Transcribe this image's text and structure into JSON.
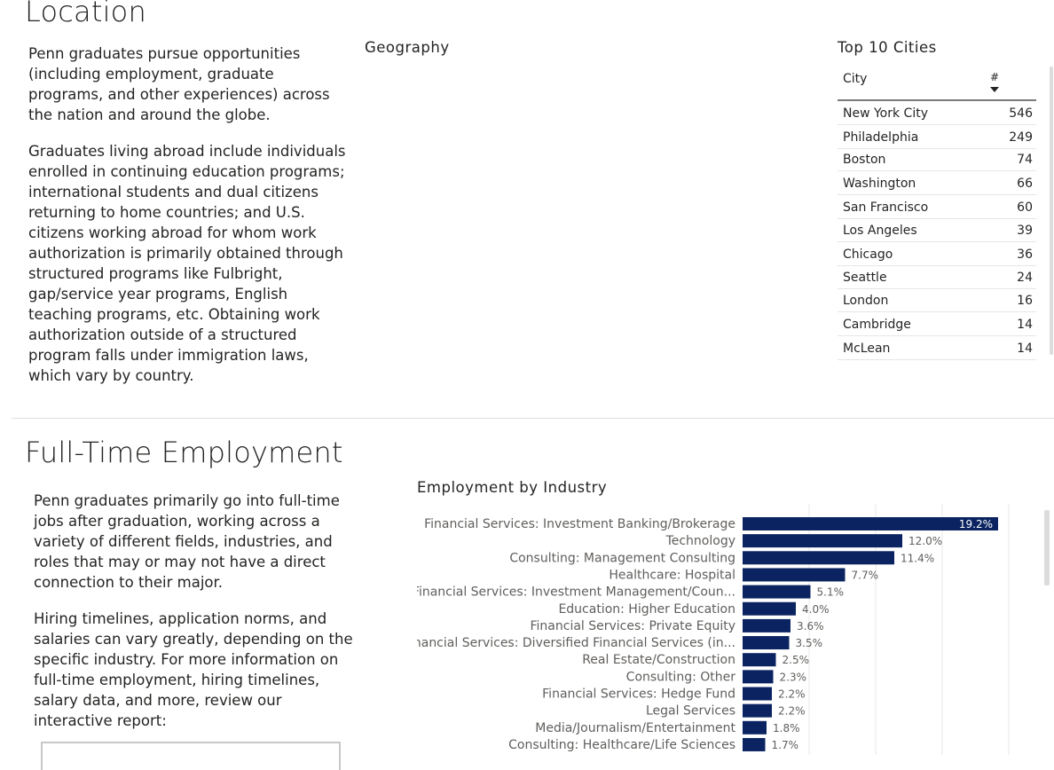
{
  "location": {
    "heading": "Location",
    "paragraphs": [
      "Penn graduates pursue opportunities (including employment, graduate programs, and other experiences) across the nation and around the globe.",
      "Graduates living abroad include individuals enrolled in continuing education programs; international students and dual citizens returning to home countries; and U.S. citizens working abroad for whom work authorization is primarily obtained through structured programs like Fulbright, gap/service year programs, English teaching programs, etc. Obtaining work authorization outside of a structured program falls under immigration laws, which vary by country."
    ],
    "geography_title": "Geography"
  },
  "top_cities": {
    "title": "Top 10 Cities",
    "col_city": "City",
    "col_count": "#",
    "rows": [
      {
        "city": "New York City",
        "count": "546"
      },
      {
        "city": "Philadelphia",
        "count": "249"
      },
      {
        "city": "Boston",
        "count": "74"
      },
      {
        "city": "Washington",
        "count": "66"
      },
      {
        "city": "San Francisco",
        "count": "60"
      },
      {
        "city": "Los Angeles",
        "count": "39"
      },
      {
        "city": "Chicago",
        "count": "36"
      },
      {
        "city": "Seattle",
        "count": "24"
      },
      {
        "city": "London",
        "count": "16"
      },
      {
        "city": "Cambridge",
        "count": "14"
      },
      {
        "city": "McLean",
        "count": "14"
      }
    ]
  },
  "employment": {
    "heading": "Full-Time Employment",
    "paragraphs": [
      "Penn graduates primarily go into full-time jobs after graduation, working across a variety of different fields, industries, and roles that may or may not have a direct connection to their major.",
      "Hiring timelines, application norms, and salaries can vary greatly, depending on the specific industry. For more information on full-time employment, hiring timelines, salary data, and more, review our interactive report:"
    ]
  },
  "colors": {
    "bar": "#0b2461",
    "grid": "#e8e8e8",
    "text": "#252423",
    "label": "#605e5c"
  },
  "chart_data": {
    "type": "bar",
    "orientation": "horizontal",
    "title": "Employment by Industry",
    "categories": [
      "Financial Services: Investment Banking/Brokerage",
      "Technology",
      "Consulting: Management Consulting",
      "Healthcare: Hospital",
      "Financial Services: Investment Management/Coun...",
      "Education: Higher Education",
      "Financial Services: Private Equity",
      "Financial Services: Diversified Financial Services (in...",
      "Real Estate/Construction",
      "Consulting: Other",
      "Financial Services: Hedge Fund",
      "Legal Services",
      "Media/Journalism/Entertainment",
      "Consulting: Healthcare/Life Sciences"
    ],
    "values": [
      19.2,
      12.0,
      11.4,
      7.7,
      5.1,
      4.0,
      3.6,
      3.5,
      2.5,
      2.3,
      2.2,
      2.2,
      1.8,
      1.7
    ],
    "value_labels": [
      "19.2%",
      "12.0%",
      "11.4%",
      "7.7%",
      "5.1%",
      "4.0%",
      "3.6%",
      "3.5%",
      "2.5%",
      "2.3%",
      "2.2%",
      "2.2%",
      "1.8%",
      "1.7%"
    ],
    "xlim": [
      0,
      20
    ],
    "grid": true
  }
}
